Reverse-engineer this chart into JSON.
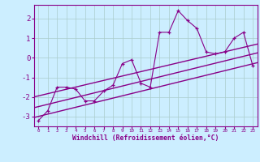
{
  "bg_color": "#cceeff",
  "line_color": "#880088",
  "grid_color": "#aacccc",
  "xlabel": "Windchill (Refroidissement éolien,°C)",
  "xlim": [
    -0.5,
    23.5
  ],
  "ylim": [
    -3.5,
    2.7
  ],
  "yticks": [
    -3,
    -2,
    -1,
    0,
    1,
    2
  ],
  "xticks": [
    0,
    1,
    2,
    3,
    4,
    5,
    6,
    7,
    8,
    9,
    10,
    11,
    12,
    13,
    14,
    15,
    16,
    17,
    18,
    19,
    20,
    21,
    22,
    23
  ],
  "scatter_x": [
    0,
    1,
    2,
    3,
    4,
    5,
    6,
    7,
    8,
    9,
    10,
    11,
    12,
    13,
    14,
    15,
    16,
    17,
    18,
    19,
    20,
    21,
    22,
    23
  ],
  "scatter_y": [
    -3.2,
    -2.7,
    -1.5,
    -1.5,
    -1.6,
    -2.2,
    -2.2,
    -1.7,
    -1.4,
    -0.3,
    -0.1,
    -1.3,
    -1.5,
    1.3,
    1.3,
    2.4,
    1.9,
    1.5,
    0.3,
    0.2,
    0.3,
    1.0,
    1.3,
    -0.4
  ],
  "reg_line1_x": [
    -0.5,
    23.5
  ],
  "reg_line1_y": [
    -3.05,
    -0.25
  ],
  "reg_line2_x": [
    -0.5,
    23.5
  ],
  "reg_line2_y": [
    -2.55,
    0.25
  ],
  "reg_line3_x": [
    -0.5,
    23.5
  ],
  "reg_line3_y": [
    -2.0,
    0.7
  ]
}
